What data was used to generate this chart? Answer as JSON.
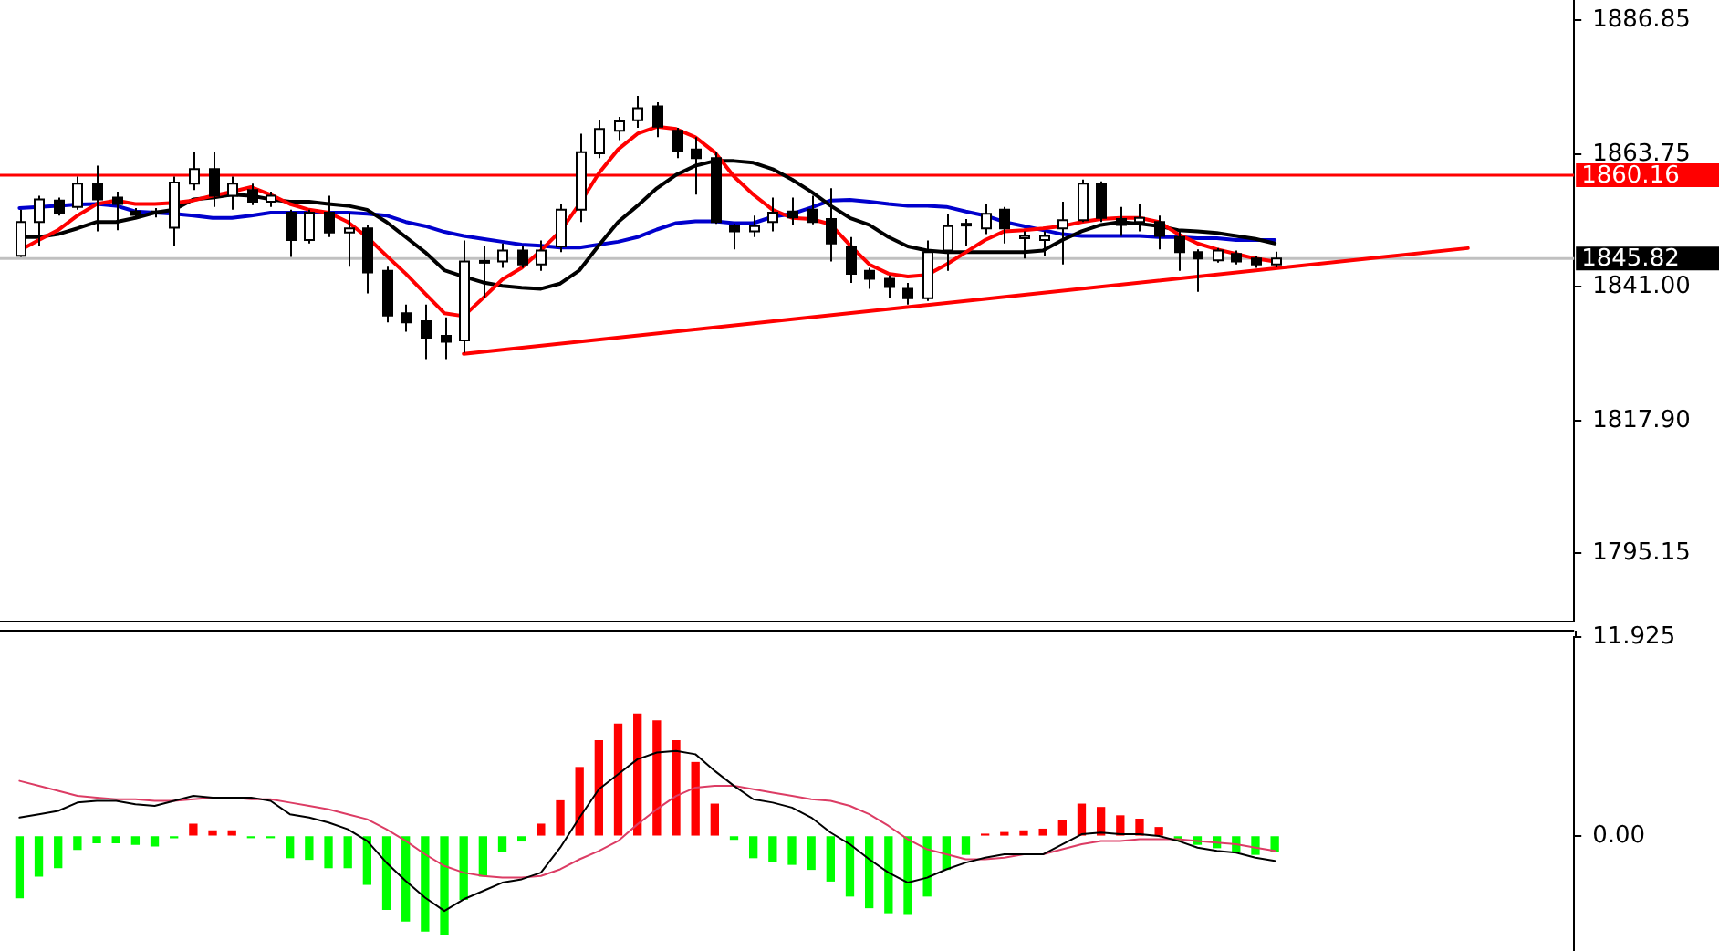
{
  "chart_data": [
    {
      "type": "candlestick",
      "categories": [
        null,
        null,
        null,
        null,
        null,
        null,
        null,
        null,
        null,
        null,
        null,
        null,
        null,
        null,
        null,
        null,
        null,
        null,
        null,
        null,
        null,
        null,
        null,
        null,
        null,
        null,
        null,
        null,
        null,
        null,
        null,
        null,
        null,
        null,
        null,
        null,
        null,
        null,
        null,
        null,
        null,
        null,
        null,
        null,
        null,
        null,
        null,
        null,
        null,
        null,
        null,
        null,
        null,
        null,
        null,
        null,
        null,
        null,
        null,
        null,
        null,
        null,
        null,
        null,
        null,
        null,
        null,
        null,
        null,
        null,
        null,
        null,
        null,
        null,
        null,
        null,
        null,
        null,
        null,
        null,
        null
      ],
      "ohlc": [
        [
          1846.3,
          1854.2,
          1846.1,
          1852.1
        ],
        [
          1852.1,
          1856.6,
          1847.9,
          1856.0
        ],
        [
          1855.8,
          1856.3,
          1853.2,
          1853.6
        ],
        [
          1854.7,
          1859.9,
          1854.2,
          1858.7
        ],
        [
          1858.7,
          1861.8,
          1850.5,
          1856.0
        ],
        [
          1856.3,
          1857.3,
          1850.7,
          1855.2
        ],
        [
          1853.9,
          1854.5,
          1852.6,
          1853.3
        ],
        [
          1853.9,
          1854.5,
          1852.9,
          1853.6
        ],
        [
          1851.1,
          1859.9,
          1847.9,
          1858.9
        ],
        [
          1858.7,
          1864.1,
          1857.6,
          1861.2
        ],
        [
          1861.2,
          1864.1,
          1854.7,
          1856.6
        ],
        [
          1856.6,
          1859.9,
          1854.2,
          1858.7
        ],
        [
          1857.6,
          1858.7,
          1855.0,
          1855.6
        ],
        [
          1855.6,
          1857.3,
          1854.7,
          1856.6
        ],
        [
          1853.7,
          1854.2,
          1846.1,
          1849.0
        ],
        [
          1849.0,
          1854.2,
          1848.4,
          1853.7
        ],
        [
          1853.7,
          1856.6,
          1849.5,
          1850.3
        ],
        [
          1850.3,
          1853.7,
          1844.4,
          1851.0
        ],
        [
          1851.0,
          1851.6,
          1839.8,
          1843.4
        ],
        [
          1843.7,
          1844.4,
          1834.8,
          1836.0
        ],
        [
          1836.4,
          1837.9,
          1833.2,
          1834.8
        ],
        [
          1835.0,
          1837.9,
          1828.5,
          1832.2
        ],
        [
          1832.5,
          1835.7,
          1828.5,
          1831.5
        ],
        [
          1831.7,
          1848.9,
          1829.6,
          1845.3
        ],
        [
          1845.1,
          1847.9,
          1839.1,
          1845.4
        ],
        [
          1845.3,
          1848.4,
          1844.2,
          1847.2
        ],
        [
          1847.2,
          1847.9,
          1844.2,
          1844.8
        ],
        [
          1844.8,
          1848.9,
          1843.7,
          1847.2
        ],
        [
          1847.9,
          1855.2,
          1846.9,
          1854.2
        ],
        [
          1854.2,
          1867.3,
          1852.1,
          1864.1
        ],
        [
          1863.9,
          1869.6,
          1863.1,
          1868.1
        ],
        [
          1867.8,
          1870.2,
          1866.2,
          1869.4
        ],
        [
          1869.6,
          1873.8,
          1868.3,
          1871.7
        ],
        [
          1872.0,
          1872.7,
          1866.7,
          1868.5
        ],
        [
          1867.8,
          1868.3,
          1863.1,
          1864.3
        ],
        [
          1864.6,
          1866.7,
          1856.8,
          1863.1
        ],
        [
          1863.1,
          1864.1,
          1851.8,
          1852.1
        ],
        [
          1851.4,
          1851.8,
          1847.4,
          1850.5
        ],
        [
          1850.5,
          1853.2,
          1849.5,
          1851.4
        ],
        [
          1852.1,
          1856.3,
          1850.5,
          1853.7
        ],
        [
          1853.9,
          1856.3,
          1851.6,
          1852.9
        ],
        [
          1854.2,
          1856.6,
          1851.7,
          1852.1
        ],
        [
          1852.6,
          1857.9,
          1845.3,
          1848.4
        ],
        [
          1847.9,
          1849.5,
          1841.6,
          1843.2
        ],
        [
          1843.7,
          1844.2,
          1840.6,
          1842.3
        ],
        [
          1842.3,
          1842.9,
          1839.1,
          1840.9
        ],
        [
          1840.6,
          1841.6,
          1837.9,
          1839.0
        ],
        [
          1839.0,
          1848.9,
          1838.5,
          1846.9
        ],
        [
          1847.2,
          1853.5,
          1843.7,
          1851.4
        ],
        [
          1851.6,
          1852.6,
          1847.9,
          1851.8
        ],
        [
          1851.0,
          1855.2,
          1850.0,
          1853.5
        ],
        [
          1854.2,
          1854.7,
          1848.4,
          1851.0
        ],
        [
          1849.3,
          1850.5,
          1845.8,
          1849.7
        ],
        [
          1849.0,
          1850.5,
          1846.3,
          1849.7
        ],
        [
          1851.0,
          1855.6,
          1844.8,
          1852.4
        ],
        [
          1852.4,
          1859.4,
          1852.1,
          1858.7
        ],
        [
          1858.7,
          1859.1,
          1852.1,
          1852.8
        ],
        [
          1852.6,
          1854.7,
          1849.7,
          1851.6
        ],
        [
          1852.1,
          1855.2,
          1850.5,
          1852.8
        ],
        [
          1852.1,
          1853.2,
          1847.4,
          1849.7
        ],
        [
          1849.5,
          1850.5,
          1843.7,
          1846.9
        ],
        [
          1846.9,
          1847.4,
          1840.1,
          1845.8
        ],
        [
          1845.5,
          1847.6,
          1845.1,
          1847.2
        ],
        [
          1846.6,
          1847.2,
          1844.8,
          1845.3
        ],
        [
          1845.8,
          1846.3,
          1844.2,
          1844.8
        ],
        [
          1844.8,
          1847.0,
          1844.3,
          1845.8
        ],
        null,
        null,
        null,
        null,
        null,
        null,
        null,
        null,
        null,
        null,
        null,
        null,
        null,
        null,
        null
      ],
      "series": [
        {
          "type": "line",
          "color": "#ff0000",
          "values": [
            1847.2,
            1849.0,
            1850.7,
            1853.2,
            1855.2,
            1855.8,
            1855.2,
            1855.2,
            1855.4,
            1855.8,
            1856.6,
            1857.3,
            1858.1,
            1856.8,
            1855.2,
            1854.2,
            1853.7,
            1852.1,
            1849.5,
            1846.3,
            1843.2,
            1839.8,
            1836.4,
            1835.9,
            1839.0,
            1842.2,
            1844.2,
            1847.2,
            1850.5,
            1855.2,
            1860.5,
            1864.6,
            1867.3,
            1868.5,
            1868.1,
            1866.7,
            1864.1,
            1859.9,
            1856.8,
            1854.2,
            1852.8,
            1852.6,
            1851.7,
            1848.1,
            1844.8,
            1843.2,
            1842.7,
            1843.0,
            1844.8,
            1846.9,
            1849.0,
            1850.5,
            1850.7,
            1851.0,
            1851.4,
            1852.1,
            1852.6,
            1852.8,
            1852.8,
            1852.1,
            1850.0,
            1848.4,
            1847.4,
            1846.6,
            1845.8,
            1845.3,
            null,
            null,
            null,
            null,
            null,
            null,
            null,
            null,
            null,
            null,
            null,
            null,
            null,
            null,
            null
          ]
        },
        {
          "type": "line",
          "color": "#000000",
          "values": [
            1849.5,
            1849.5,
            1850.0,
            1851.0,
            1852.1,
            1852.1,
            1852.8,
            1853.7,
            1854.2,
            1856.0,
            1856.3,
            1856.8,
            1856.6,
            1856.0,
            1855.6,
            1855.6,
            1855.2,
            1854.9,
            1854.2,
            1852.1,
            1849.5,
            1846.9,
            1843.8,
            1842.7,
            1841.7,
            1841.1,
            1840.8,
            1840.6,
            1841.5,
            1843.8,
            1848.1,
            1852.1,
            1854.9,
            1857.9,
            1860.2,
            1861.8,
            1862.6,
            1862.6,
            1862.3,
            1861.2,
            1859.4,
            1857.3,
            1854.9,
            1852.8,
            1851.6,
            1849.5,
            1847.9,
            1847.2,
            1846.9,
            1846.9,
            1846.9,
            1846.9,
            1846.9,
            1847.2,
            1849.0,
            1850.5,
            1851.6,
            1852.1,
            1851.8,
            1851.4,
            1850.7,
            1850.5,
            1850.2,
            1849.7,
            1849.2,
            1848.4,
            null,
            null,
            null,
            null,
            null,
            null,
            null,
            null,
            null,
            null,
            null,
            null,
            null,
            null,
            null
          ]
        },
        {
          "type": "line",
          "color": "#0000cd",
          "values": [
            1854.5,
            1854.7,
            1854.9,
            1855.1,
            1855.2,
            1854.9,
            1853.9,
            1853.7,
            1853.5,
            1853.2,
            1852.8,
            1852.8,
            1853.2,
            1853.7,
            1853.7,
            1853.7,
            1853.7,
            1853.7,
            1853.5,
            1853.2,
            1852.1,
            1851.4,
            1850.4,
            1849.7,
            1849.2,
            1848.7,
            1848.2,
            1848.0,
            1847.7,
            1847.7,
            1848.2,
            1848.7,
            1849.5,
            1850.8,
            1851.9,
            1852.2,
            1852.2,
            1851.9,
            1851.9,
            1853.0,
            1853.5,
            1854.6,
            1855.8,
            1855.9,
            1855.6,
            1855.2,
            1854.9,
            1854.9,
            1854.7,
            1853.9,
            1853.2,
            1852.1,
            1851.4,
            1850.7,
            1850.0,
            1849.7,
            1849.7,
            1849.7,
            1849.7,
            1849.5,
            1849.5,
            1849.3,
            1849.3,
            1849.0,
            1849.0,
            1849.0,
            null,
            null,
            null,
            null,
            null,
            null,
            null,
            null,
            null,
            null,
            null,
            null,
            null,
            null,
            null
          ]
        },
        {
          "type": "line",
          "color": "#ff0000",
          "values": [
            null,
            null,
            null,
            null,
            null,
            null,
            null,
            null,
            null,
            null,
            null,
            null,
            null,
            null,
            null,
            null,
            null,
            null,
            null,
            null,
            null,
            null,
            null,
            1829.4,
            null,
            null,
            null,
            null,
            null,
            null,
            null,
            null,
            null,
            null,
            null,
            null,
            null,
            null,
            null,
            null,
            null,
            null,
            null,
            null,
            null,
            null,
            null,
            null,
            null,
            null,
            null,
            null,
            null,
            null,
            null,
            null,
            null,
            null,
            null,
            null,
            null,
            null,
            null,
            null,
            null,
            null,
            null,
            null,
            null,
            null,
            null,
            null,
            null,
            null,
            null,
            1847.6,
            null,
            null,
            null,
            null,
            null
          ]
        }
      ],
      "ylim": [
        1783.5,
        1890.3
      ],
      "yticks": [
        1886.85,
        1863.75,
        {
          "value": 1841,
          "label": "1841.00"
        },
        {
          "value": 1817.9,
          "label": "1817.90"
        },
        1795.15
      ],
      "ref_lines": [
        {
          "axis": "y",
          "value": 1860.16,
          "label": "1860.16",
          "color": "#ff0000"
        },
        {
          "axis": "y",
          "value": 1845.82,
          "label": "1845.82",
          "color": "#c0c0c0"
        }
      ],
      "tick_labels": "y"
    },
    {
      "type": "bar",
      "categories": [
        null,
        null,
        null,
        null,
        null,
        null,
        null,
        null,
        null,
        null,
        null,
        null,
        null,
        null,
        null,
        null,
        null,
        null,
        null,
        null,
        null,
        null,
        null,
        null,
        null,
        null,
        null,
        null,
        null,
        null,
        null,
        null,
        null,
        null,
        null,
        null,
        null,
        null,
        null,
        null,
        null,
        null,
        null,
        null,
        null,
        null,
        null,
        null,
        null,
        null,
        null,
        null,
        null,
        null,
        null,
        null,
        null,
        null,
        null,
        null,
        null,
        null,
        null,
        null,
        null,
        null,
        null,
        null,
        null,
        null,
        null,
        null,
        null,
        null,
        null,
        null,
        null,
        null,
        null,
        null,
        null
      ],
      "series": [
        {
          "colors": [
            "#00ff00",
            "#00ff00",
            "#00ff00",
            "#00ff00",
            "#00ff00",
            "#00ff00",
            "#00ff00",
            "#00ff00",
            "#00ff00",
            "#ff0000",
            "#ff0000",
            "#ff0000",
            "#00ff00",
            "#00ff00",
            "#00ff00",
            "#00ff00",
            "#00ff00",
            "#00ff00",
            "#00ff00",
            "#00ff00",
            "#00ff00",
            "#00ff00",
            "#00ff00",
            "#00ff00",
            "#00ff00",
            "#00ff00",
            "#00ff00",
            "#ff0000",
            "#ff0000",
            "#ff0000",
            "#ff0000",
            "#ff0000",
            "#ff0000",
            "#ff0000",
            "#ff0000",
            "#ff0000",
            "#ff0000",
            "#00ff00",
            "#00ff00",
            "#00ff00",
            "#00ff00",
            "#00ff00",
            "#00ff00",
            "#00ff00",
            "#00ff00",
            "#00ff00",
            "#00ff00",
            "#00ff00",
            "#00ff00",
            "#00ff00",
            "#ff0000",
            "#ff0000",
            "#ff0000",
            "#ff0000",
            "#ff0000",
            "#ff0000",
            "#ff0000",
            "#ff0000",
            "#ff0000",
            "#ff0000",
            "#00ff00",
            "#00ff00",
            "#00ff00",
            "#00ff00",
            "#00ff00",
            "#00ff00",
            null,
            null,
            null,
            null,
            null,
            null,
            null,
            null,
            null,
            null,
            null,
            null,
            null,
            null,
            null
          ],
          "values": [
            -3.7,
            -2.4,
            -1.9,
            -0.8,
            -0.4,
            -0.4,
            -0.5,
            -0.6,
            -0.1,
            0.7,
            0.3,
            0.3,
            -0.1,
            -0.1,
            -1.3,
            -1.4,
            -1.9,
            -1.9,
            -2.9,
            -4.4,
            -5.1,
            -5.7,
            -5.9,
            -3.8,
            -2.4,
            -0.9,
            -0.3,
            0.7,
            2.1,
            4.1,
            5.7,
            6.7,
            7.3,
            6.9,
            5.7,
            4.4,
            1.9,
            -0.2,
            -1.3,
            -1.5,
            -1.7,
            -2.0,
            -2.7,
            -3.6,
            -4.3,
            -4.6,
            -4.7,
            -3.6,
            -2.0,
            -1.1,
            0.1,
            0.2,
            0.3,
            0.4,
            0.9,
            1.9,
            1.7,
            1.2,
            1.0,
            0.5,
            -0.3,
            -0.5,
            -0.7,
            -0.9,
            -1.1,
            -0.9,
            null,
            null,
            null,
            null,
            null,
            null,
            null,
            null,
            null,
            null,
            null,
            null,
            null,
            null,
            null
          ]
        },
        {
          "type": "line",
          "color": "#000000",
          "values": [
            1.1,
            1.3,
            1.5,
            2.0,
            2.1,
            2.1,
            1.9,
            1.8,
            2.1,
            2.4,
            2.3,
            2.3,
            2.3,
            2.1,
            1.3,
            1.1,
            0.8,
            0.4,
            -0.3,
            -1.6,
            -2.7,
            -3.7,
            -4.5,
            -3.8,
            -3.3,
            -2.8,
            -2.6,
            -2.2,
            -0.7,
            1.1,
            2.8,
            3.7,
            4.6,
            5.0,
            5.1,
            4.9,
            3.9,
            3.0,
            2.2,
            2.0,
            1.7,
            1.1,
            0.2,
            -0.5,
            -1.4,
            -2.2,
            -2.8,
            -2.5,
            -2.0,
            -1.6,
            -1.3,
            -1.1,
            -1.1,
            -1.1,
            -0.5,
            0.1,
            0.2,
            0.1,
            0.1,
            0.0,
            -0.3,
            -0.7,
            -0.9,
            -1.0,
            -1.3,
            -1.5,
            null,
            null,
            null,
            null,
            null,
            null,
            null,
            null,
            null,
            null,
            null,
            null,
            null,
            null,
            null
          ]
        },
        {
          "type": "line",
          "color": "#dc3c64",
          "values": [
            3.3,
            3.0,
            2.7,
            2.4,
            2.3,
            2.2,
            2.2,
            2.1,
            2.1,
            2.2,
            2.3,
            2.3,
            2.2,
            2.2,
            2.0,
            1.8,
            1.6,
            1.3,
            1.0,
            0.4,
            -0.3,
            -1.1,
            -1.8,
            -2.2,
            -2.4,
            -2.5,
            -2.5,
            -2.4,
            -2.0,
            -1.4,
            -0.9,
            -0.3,
            0.7,
            1.6,
            2.4,
            2.9,
            3.0,
            3.0,
            2.8,
            2.6,
            2.4,
            2.2,
            2.1,
            1.8,
            1.3,
            0.6,
            -0.2,
            -0.8,
            -1.1,
            -1.4,
            -1.4,
            -1.3,
            -1.1,
            -1.1,
            -0.8,
            -0.5,
            -0.3,
            -0.3,
            -0.2,
            -0.2,
            -0.2,
            -0.3,
            -0.4,
            -0.5,
            -0.7,
            -0.9,
            null,
            null,
            null,
            null,
            null,
            null,
            null,
            null,
            null,
            null,
            null,
            null,
            null,
            null,
            null
          ]
        }
      ],
      "ylim": [
        -6.9,
        11.925
      ],
      "yticks": [
        11.925,
        {
          "value": 0,
          "label": "0.00"
        }
      ],
      "tick_labels": "y"
    }
  ]
}
